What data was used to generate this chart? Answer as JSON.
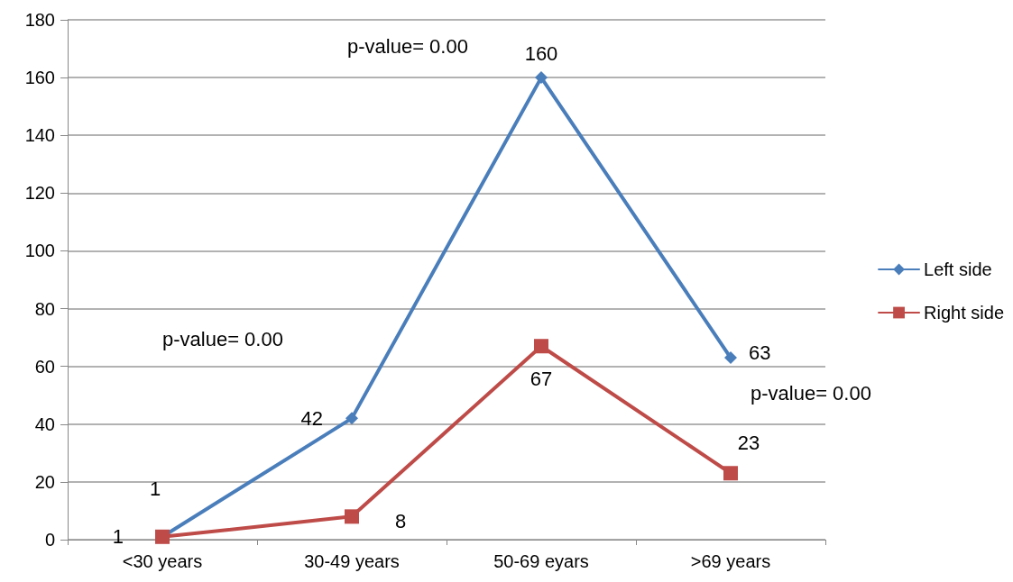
{
  "chart_data": {
    "type": "line",
    "categories": [
      "<30 years",
      "30-49 years",
      "50-69 eyars",
      ">69 years"
    ],
    "series": [
      {
        "name": "Left side",
        "color": "#4a7ebb",
        "marker": "diamond",
        "values": [
          1,
          42,
          160,
          63
        ]
      },
      {
        "name": "Right side",
        "color": "#be4b48",
        "marker": "square",
        "values": [
          1,
          8,
          67,
          23
        ]
      }
    ],
    "ylim": [
      0,
      180
    ],
    "yticks": [
      0,
      20,
      40,
      60,
      80,
      100,
      120,
      140,
      160,
      180
    ],
    "grid": "y",
    "legend": "right",
    "data_labels": true,
    "annotations": [
      "p-value= 0.00",
      "p-value= 0.00",
      "p-value= 0.00"
    ]
  }
}
